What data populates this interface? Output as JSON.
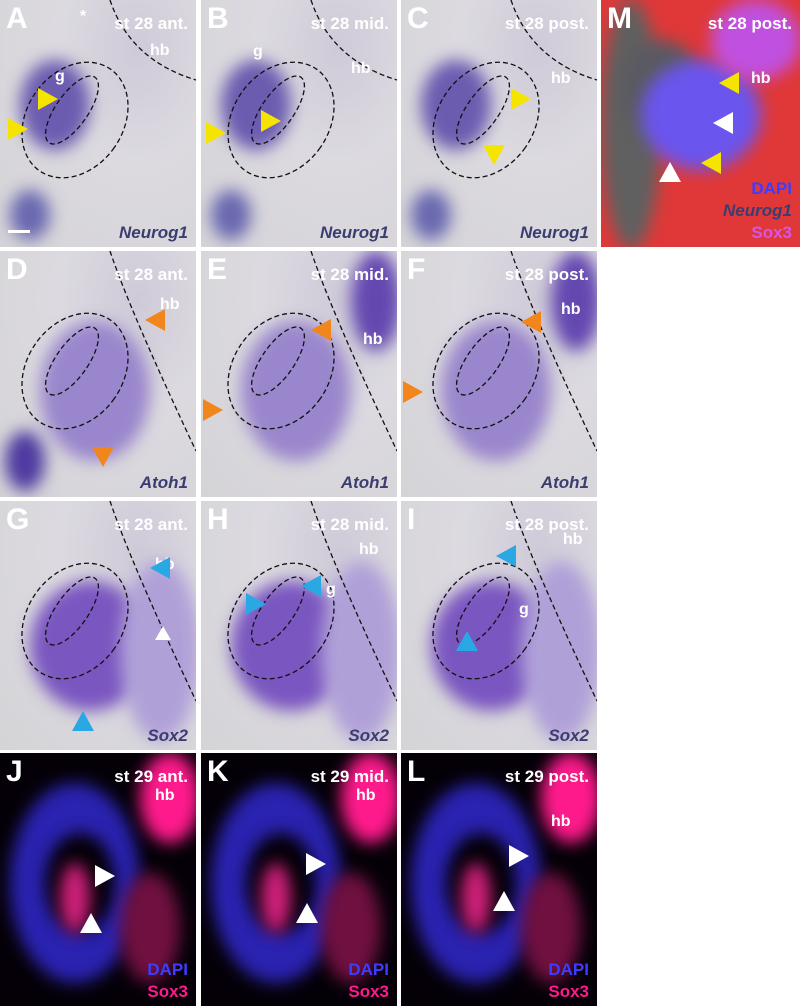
{
  "colors": {
    "yellow": "#f5e400",
    "orange": "#f0861c",
    "blue": "#2aa8e4",
    "white": "#ffffff",
    "gene_dark": "#3b3d70",
    "dapi": "#3d3dff",
    "sox3_red": "#ff1a8c",
    "sox3_m": "#d456e8"
  },
  "panels": [
    {
      "letter": "A",
      "stage": "st 28 ant.",
      "tags": [
        "hb",
        "g",
        "*"
      ],
      "genes": [
        {
          "text": "Neurog1",
          "color": "#3b3d70",
          "italic": true
        }
      ],
      "arrows": [
        "yellow",
        "yellow"
      ],
      "scale_bar": true
    },
    {
      "letter": "B",
      "stage": "st 28 mid.",
      "tags": [
        "hb",
        "g"
      ],
      "genes": [
        {
          "text": "Neurog1",
          "color": "#3b3d70",
          "italic": true
        }
      ],
      "arrows": [
        "yellow",
        "yellow"
      ]
    },
    {
      "letter": "C",
      "stage": "st 28 post.",
      "tags": [
        "hb"
      ],
      "genes": [
        {
          "text": "Neurog1",
          "color": "#3b3d70",
          "italic": true
        }
      ],
      "arrows": [
        "yellow",
        "yellow"
      ]
    },
    {
      "letter": "M",
      "stage": "st 28 post.",
      "tags": [
        "hb"
      ],
      "genes": [
        {
          "text": "DAPI",
          "color": "#3d3dff",
          "italic": false
        },
        {
          "text": "Neurog1",
          "color": "#3b3d70",
          "italic": true
        },
        {
          "text": "Sox3",
          "color": "#d456e8",
          "italic": false
        }
      ],
      "arrows": [
        "yellow",
        "white",
        "yellow",
        "white"
      ]
    },
    {
      "letter": "D",
      "stage": "st 28 ant.",
      "tags": [
        "hb"
      ],
      "genes": [
        {
          "text": "Atoh1",
          "color": "#3b3d70",
          "italic": true
        }
      ],
      "arrows": [
        "orange",
        "orange"
      ]
    },
    {
      "letter": "E",
      "stage": "st 28 mid.",
      "tags": [
        "hb"
      ],
      "genes": [
        {
          "text": "Atoh1",
          "color": "#3b3d70",
          "italic": true
        }
      ],
      "arrows": [
        "orange",
        "orange"
      ]
    },
    {
      "letter": "F",
      "stage": "st 28 post.",
      "tags": [
        "hb"
      ],
      "genes": [
        {
          "text": "Atoh1",
          "color": "#3b3d70",
          "italic": true
        }
      ],
      "arrows": [
        "orange",
        "orange"
      ]
    },
    {
      "letter": "G",
      "stage": "st 28 ant.",
      "tags": [
        "hb"
      ],
      "genes": [
        {
          "text": "Sox2",
          "color": "#3b3d70",
          "italic": true
        }
      ],
      "arrows": [
        "blue",
        "blue",
        "white"
      ]
    },
    {
      "letter": "H",
      "stage": "st 28 mid.",
      "tags": [
        "hb",
        "g"
      ],
      "genes": [
        {
          "text": "Sox2",
          "color": "#3b3d70",
          "italic": true
        }
      ],
      "arrows": [
        "blue",
        "blue"
      ]
    },
    {
      "letter": "I",
      "stage": "st 28 post.",
      "tags": [
        "hb",
        "g"
      ],
      "genes": [
        {
          "text": "Sox2",
          "color": "#3b3d70",
          "italic": true
        }
      ],
      "arrows": [
        "blue",
        "blue"
      ]
    },
    {
      "letter": "J",
      "stage": "st 29 ant.",
      "tags": [
        "hb"
      ],
      "genes": [
        {
          "text": "DAPI",
          "color": "#3d3dff",
          "italic": false
        },
        {
          "text": "Sox3",
          "color": "#ff1a8c",
          "italic": false
        }
      ],
      "arrows": [
        "white",
        "white"
      ]
    },
    {
      "letter": "K",
      "stage": "st 29 mid.",
      "tags": [
        "hb"
      ],
      "genes": [
        {
          "text": "DAPI",
          "color": "#3d3dff",
          "italic": false
        },
        {
          "text": "Sox3",
          "color": "#ff1a8c",
          "italic": false
        }
      ],
      "arrows": [
        "white",
        "white"
      ]
    },
    {
      "letter": "L",
      "stage": "st 29 post.",
      "tags": [
        "hb"
      ],
      "genes": [
        {
          "text": "DAPI",
          "color": "#3d3dff",
          "italic": false
        },
        {
          "text": "Sox3",
          "color": "#ff1a8c",
          "italic": false
        }
      ],
      "arrows": [
        "white",
        "white"
      ]
    }
  ]
}
